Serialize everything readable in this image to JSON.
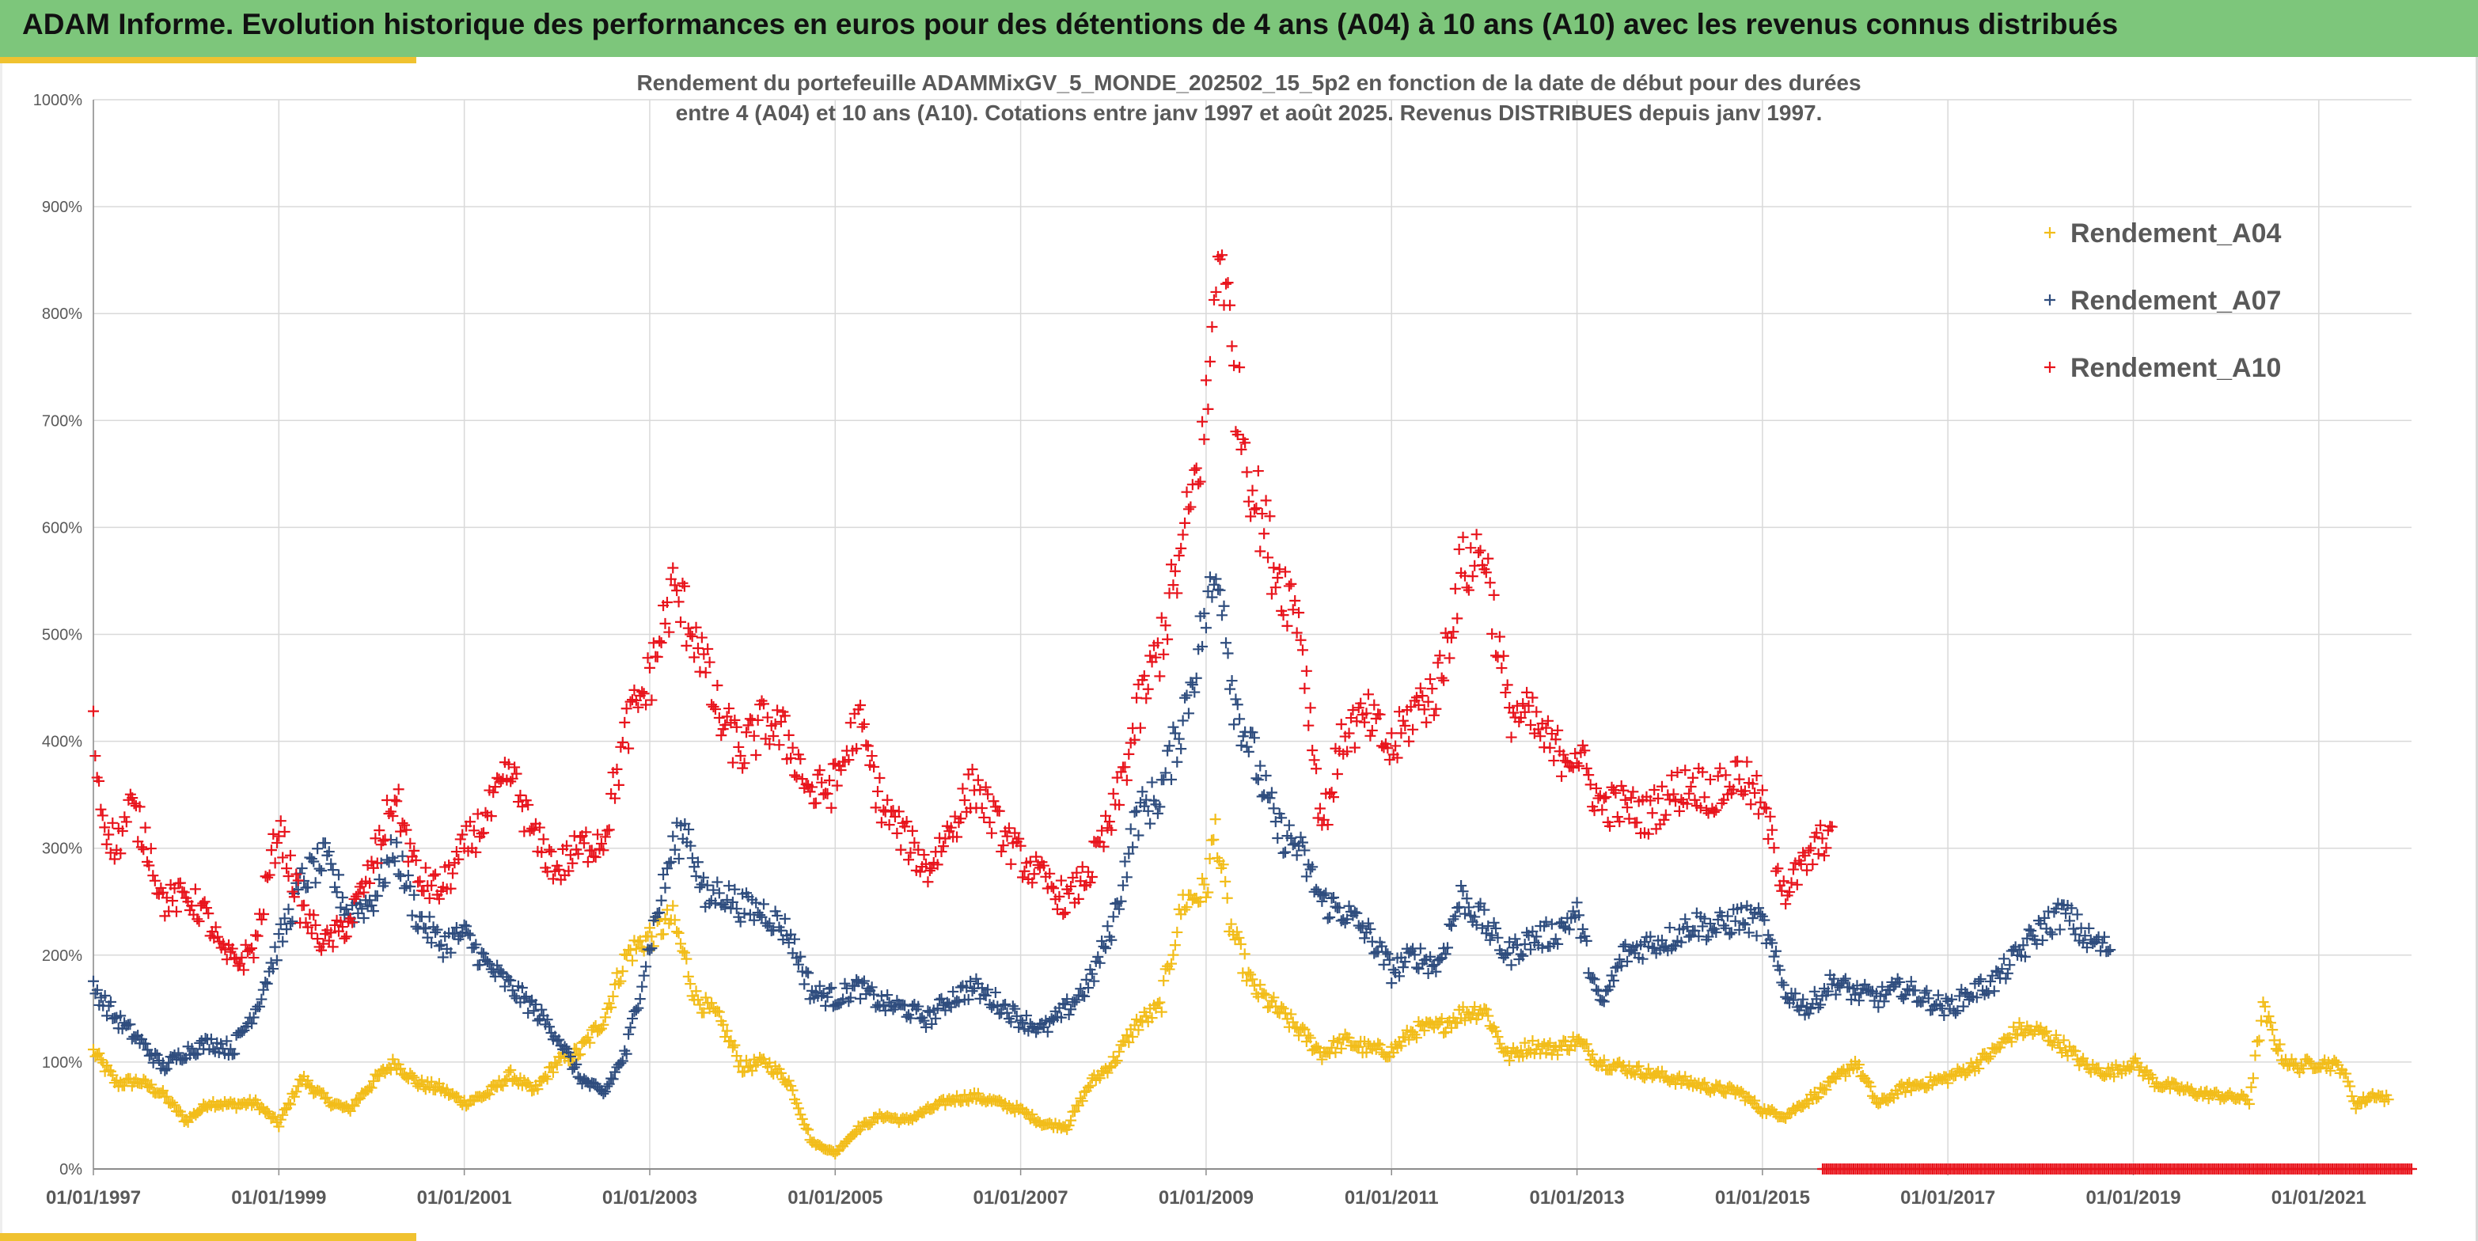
{
  "header": {
    "title": "ADAM Informe. Evolution historique des performances en euros pour des détentions de 4 ans (A04) à 10 ans (A10) avec les revenus connus distribués"
  },
  "colors": {
    "header_background": "#7dc67b",
    "accent": "#f0c230",
    "A04": "#f2bd1a",
    "A07": "#2f4d7e",
    "A10": "#e8141c"
  },
  "chart_data": {
    "type": "scatter",
    "marker": "plus",
    "title_line1": "Rendement du portefeuille ADAMMixGV_5_MONDE_202502_15_5p2  en fonction de la date de début pour des durées",
    "title_line2": "entre 4 (A04) et 10 ans (A10). Cotations entre janv 1997 et août 2025. Revenus DISTRIBUES depuis janv 1997.",
    "xlabel": "",
    "ylabel": "",
    "ylim": [
      0,
      1000
    ],
    "y_ticks": [
      0,
      100,
      200,
      300,
      400,
      500,
      600,
      700,
      800,
      900,
      1000
    ],
    "y_tick_format": "%",
    "xlim_year": [
      1997.0,
      2022.0
    ],
    "x_ticks": [
      "01/01/1997",
      "01/01/1999",
      "01/01/2001",
      "01/01/2003",
      "01/01/2005",
      "01/01/2007",
      "01/01/2009",
      "01/01/2011",
      "01/01/2013",
      "01/01/2015",
      "01/01/2017",
      "01/01/2019",
      "01/01/2021"
    ],
    "grid": true,
    "legend_position": "top-right",
    "series": [
      {
        "name": "Rendement_A04",
        "color": "#f2bd1a",
        "points": [
          [
            1997.0,
            110
          ],
          [
            1997.25,
            80
          ],
          [
            1997.5,
            82
          ],
          [
            1997.75,
            70
          ],
          [
            1998.0,
            45
          ],
          [
            1998.25,
            62
          ],
          [
            1998.5,
            60
          ],
          [
            1998.75,
            62
          ],
          [
            1999.0,
            42
          ],
          [
            1999.25,
            85
          ],
          [
            1999.5,
            65
          ],
          [
            1999.75,
            55
          ],
          [
            2000.0,
            80
          ],
          [
            2000.25,
            100
          ],
          [
            2000.5,
            80
          ],
          [
            2000.75,
            75
          ],
          [
            2001.0,
            62
          ],
          [
            2001.25,
            70
          ],
          [
            2001.5,
            88
          ],
          [
            2001.75,
            72
          ],
          [
            2002.0,
            100
          ],
          [
            2002.25,
            110
          ],
          [
            2002.5,
            140
          ],
          [
            2002.75,
            200
          ],
          [
            2003.0,
            218
          ],
          [
            2003.25,
            235
          ],
          [
            2003.5,
            160
          ],
          [
            2003.75,
            140
          ],
          [
            2004.0,
            95
          ],
          [
            2004.25,
            100
          ],
          [
            2004.5,
            82
          ],
          [
            2004.75,
            25
          ],
          [
            2005.0,
            15
          ],
          [
            2005.25,
            38
          ],
          [
            2005.5,
            50
          ],
          [
            2005.75,
            45
          ],
          [
            2006.0,
            55
          ],
          [
            2006.25,
            65
          ],
          [
            2006.5,
            68
          ],
          [
            2006.75,
            62
          ],
          [
            2007.0,
            55
          ],
          [
            2007.25,
            42
          ],
          [
            2007.5,
            40
          ],
          [
            2007.75,
            80
          ],
          [
            2008.0,
            100
          ],
          [
            2008.25,
            135
          ],
          [
            2008.5,
            150
          ],
          [
            2008.75,
            250
          ],
          [
            2009.0,
            260
          ],
          [
            2009.1,
            320
          ],
          [
            2009.25,
            230
          ],
          [
            2009.5,
            170
          ],
          [
            2009.75,
            150
          ],
          [
            2010.0,
            130
          ],
          [
            2010.25,
            108
          ],
          [
            2010.5,
            120
          ],
          [
            2010.75,
            112
          ],
          [
            2011.0,
            110
          ],
          [
            2011.25,
            130
          ],
          [
            2011.5,
            132
          ],
          [
            2011.75,
            145
          ],
          [
            2012.0,
            150
          ],
          [
            2012.25,
            105
          ],
          [
            2012.5,
            115
          ],
          [
            2012.75,
            112
          ],
          [
            2013.0,
            120
          ],
          [
            2013.25,
            100
          ],
          [
            2013.5,
            95
          ],
          [
            2013.75,
            90
          ],
          [
            2014.0,
            85
          ],
          [
            2014.25,
            80
          ],
          [
            2014.5,
            75
          ],
          [
            2014.75,
            72
          ],
          [
            2015.0,
            55
          ],
          [
            2015.25,
            50
          ],
          [
            2015.5,
            65
          ],
          [
            2015.75,
            80
          ],
          [
            2016.0,
            100
          ],
          [
            2016.25,
            60
          ],
          [
            2016.5,
            75
          ],
          [
            2016.75,
            80
          ],
          [
            2017.0,
            85
          ],
          [
            2017.25,
            95
          ],
          [
            2017.5,
            110
          ],
          [
            2017.75,
            130
          ],
          [
            2018.0,
            128
          ],
          [
            2018.25,
            115
          ],
          [
            2018.5,
            95
          ],
          [
            2018.75,
            90
          ],
          [
            2019.0,
            100
          ],
          [
            2019.25,
            80
          ],
          [
            2019.5,
            75
          ],
          [
            2019.75,
            70
          ],
          [
            2020.0,
            68
          ],
          [
            2020.25,
            65
          ],
          [
            2020.4,
            150
          ],
          [
            2020.6,
            105
          ],
          [
            2020.75,
            95
          ],
          [
            2021.0,
            100
          ],
          [
            2021.25,
            95
          ],
          [
            2021.4,
            60
          ],
          [
            2021.6,
            70
          ],
          [
            2021.75,
            65
          ]
        ]
      },
      {
        "name": "Rendement_A07",
        "color": "#2f4d7e",
        "points": [
          [
            1997.0,
            170
          ],
          [
            1997.25,
            140
          ],
          [
            1997.5,
            120
          ],
          [
            1997.75,
            95
          ],
          [
            1998.0,
            110
          ],
          [
            1998.25,
            118
          ],
          [
            1998.5,
            112
          ],
          [
            1998.75,
            150
          ],
          [
            1999.0,
            210
          ],
          [
            1999.25,
            270
          ],
          [
            1999.5,
            290
          ],
          [
            1999.75,
            240
          ],
          [
            2000.0,
            250
          ],
          [
            2000.25,
            300
          ],
          [
            2000.5,
            235
          ],
          [
            2000.75,
            210
          ],
          [
            2001.0,
            220
          ],
          [
            2001.25,
            190
          ],
          [
            2001.5,
            170
          ],
          [
            2001.75,
            150
          ],
          [
            2002.0,
            125
          ],
          [
            2002.25,
            85
          ],
          [
            2002.5,
            70
          ],
          [
            2002.75,
            110
          ],
          [
            2003.0,
            210
          ],
          [
            2003.25,
            300
          ],
          [
            2003.4,
            320
          ],
          [
            2003.6,
            250
          ],
          [
            2003.75,
            260
          ],
          [
            2004.0,
            245
          ],
          [
            2004.25,
            240
          ],
          [
            2004.5,
            220
          ],
          [
            2004.75,
            165
          ],
          [
            2005.0,
            160
          ],
          [
            2005.25,
            170
          ],
          [
            2005.5,
            155
          ],
          [
            2005.75,
            150
          ],
          [
            2006.0,
            140
          ],
          [
            2006.25,
            160
          ],
          [
            2006.5,
            170
          ],
          [
            2006.75,
            155
          ],
          [
            2007.0,
            140
          ],
          [
            2007.25,
            130
          ],
          [
            2007.5,
            150
          ],
          [
            2007.75,
            175
          ],
          [
            2008.0,
            230
          ],
          [
            2008.25,
            330
          ],
          [
            2008.5,
            350
          ],
          [
            2008.75,
            420
          ],
          [
            2009.0,
            520
          ],
          [
            2009.15,
            560
          ],
          [
            2009.3,
            440
          ],
          [
            2009.5,
            390
          ],
          [
            2009.75,
            320
          ],
          [
            2010.0,
            300
          ],
          [
            2010.25,
            250
          ],
          [
            2010.5,
            240
          ],
          [
            2010.75,
            220
          ],
          [
            2011.0,
            185
          ],
          [
            2011.25,
            200
          ],
          [
            2011.5,
            190
          ],
          [
            2011.75,
            255
          ],
          [
            2012.0,
            230
          ],
          [
            2012.25,
            200
          ],
          [
            2012.5,
            215
          ],
          [
            2012.75,
            220
          ],
          [
            2013.0,
            240
          ],
          [
            2013.25,
            150
          ],
          [
            2013.5,
            200
          ],
          [
            2013.75,
            210
          ],
          [
            2014.0,
            215
          ],
          [
            2014.25,
            230
          ],
          [
            2014.5,
            225
          ],
          [
            2014.75,
            235
          ],
          [
            2015.0,
            230
          ],
          [
            2015.25,
            165
          ],
          [
            2015.5,
            150
          ],
          [
            2015.75,
            175
          ],
          [
            2016.0,
            165
          ],
          [
            2016.25,
            160
          ],
          [
            2016.5,
            170
          ],
          [
            2016.75,
            160
          ],
          [
            2017.0,
            150
          ],
          [
            2017.25,
            165
          ],
          [
            2017.5,
            175
          ],
          [
            2017.75,
            200
          ],
          [
            2018.0,
            225
          ],
          [
            2018.25,
            240
          ],
          [
            2018.5,
            215
          ],
          [
            2018.75,
            205
          ]
        ]
      },
      {
        "name": "Rendement_A10",
        "color": "#e8141c",
        "points": [
          [
            1997.0,
            410
          ],
          [
            1997.1,
            330
          ],
          [
            1997.25,
            300
          ],
          [
            1997.4,
            340
          ],
          [
            1997.6,
            300
          ],
          [
            1997.75,
            250
          ],
          [
            1998.0,
            255
          ],
          [
            1998.2,
            240
          ],
          [
            1998.4,
            200
          ],
          [
            1998.6,
            195
          ],
          [
            1998.75,
            210
          ],
          [
            1998.9,
            280
          ],
          [
            1999.0,
            320
          ],
          [
            1999.25,
            240
          ],
          [
            1999.5,
            210
          ],
          [
            1999.75,
            230
          ],
          [
            2000.0,
            280
          ],
          [
            2000.25,
            350
          ],
          [
            2000.5,
            270
          ],
          [
            2000.75,
            260
          ],
          [
            2001.0,
            300
          ],
          [
            2001.25,
            330
          ],
          [
            2001.5,
            370
          ],
          [
            2001.75,
            310
          ],
          [
            2002.0,
            280
          ],
          [
            2002.25,
            300
          ],
          [
            2002.5,
            310
          ],
          [
            2002.75,
            410
          ],
          [
            2003.0,
            460
          ],
          [
            2003.25,
            540
          ],
          [
            2003.5,
            500
          ],
          [
            2003.75,
            420
          ],
          [
            2004.0,
            390
          ],
          [
            2004.25,
            420
          ],
          [
            2004.5,
            400
          ],
          [
            2004.75,
            350
          ],
          [
            2005.0,
            360
          ],
          [
            2005.25,
            420
          ],
          [
            2005.5,
            340
          ],
          [
            2005.75,
            310
          ],
          [
            2006.0,
            280
          ],
          [
            2006.25,
            320
          ],
          [
            2006.5,
            360
          ],
          [
            2006.75,
            320
          ],
          [
            2007.0,
            290
          ],
          [
            2007.25,
            270
          ],
          [
            2007.5,
            250
          ],
          [
            2007.75,
            280
          ],
          [
            2008.0,
            330
          ],
          [
            2008.25,
            420
          ],
          [
            2008.5,
            490
          ],
          [
            2008.75,
            580
          ],
          [
            2009.0,
            700
          ],
          [
            2009.15,
            880
          ],
          [
            2009.3,
            740
          ],
          [
            2009.5,
            640
          ],
          [
            2009.75,
            560
          ],
          [
            2010.0,
            520
          ],
          [
            2010.25,
            320
          ],
          [
            2010.5,
            410
          ],
          [
            2010.75,
            420
          ],
          [
            2011.0,
            390
          ],
          [
            2011.25,
            430
          ],
          [
            2011.5,
            450
          ],
          [
            2011.75,
            560
          ],
          [
            2012.0,
            580
          ],
          [
            2012.25,
            430
          ],
          [
            2012.5,
            420
          ],
          [
            2012.75,
            390
          ],
          [
            2013.0,
            390
          ],
          [
            2013.25,
            340
          ],
          [
            2013.5,
            340
          ],
          [
            2013.75,
            330
          ],
          [
            2014.0,
            350
          ],
          [
            2014.25,
            360
          ],
          [
            2014.5,
            350
          ],
          [
            2014.75,
            370
          ],
          [
            2015.0,
            340
          ],
          [
            2015.25,
            260
          ],
          [
            2015.5,
            290
          ],
          [
            2015.75,
            320
          ]
        ],
        "zero_run": {
          "x_start": 2015.65,
          "x_end": 2022.0,
          "value": 0
        }
      }
    ]
  }
}
